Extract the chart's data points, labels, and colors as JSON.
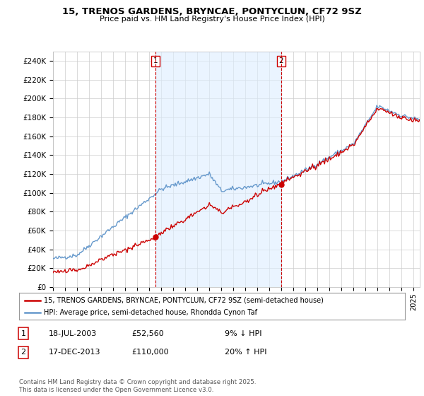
{
  "title": "15, TRENOS GARDENS, BRYNCAE, PONTYCLUN, CF72 9SZ",
  "subtitle": "Price paid vs. HM Land Registry's House Price Index (HPI)",
  "ylim": [
    0,
    250000
  ],
  "yticks": [
    0,
    20000,
    40000,
    60000,
    80000,
    100000,
    120000,
    140000,
    160000,
    180000,
    200000,
    220000,
    240000
  ],
  "xlim_start": 1995.0,
  "xlim_end": 2025.5,
  "sale1_date": 2003.54,
  "sale1_price": 52560,
  "sale2_date": 2013.96,
  "sale2_price": 110000,
  "legend_line1": "15, TRENOS GARDENS, BRYNCAE, PONTYCLUN, CF72 9SZ (semi-detached house)",
  "legend_line2": "HPI: Average price, semi-detached house, Rhondda Cynon Taf",
  "footer": "Contains HM Land Registry data © Crown copyright and database right 2025.\nThis data is licensed under the Open Government Licence v3.0.",
  "line_color_red": "#cc0000",
  "line_color_blue": "#6699cc",
  "fill_color": "#ddeeff",
  "vline_color": "#cc0000",
  "bg_color": "#ffffff",
  "grid_color": "#cccccc",
  "table_rows": [
    {
      "label": "1",
      "date": "18-JUL-2003",
      "price": "£52,560",
      "pct": "9% ↓ HPI"
    },
    {
      "label": "2",
      "date": "17-DEC-2013",
      "price": "£110,000",
      "pct": "20% ↑ HPI"
    }
  ]
}
